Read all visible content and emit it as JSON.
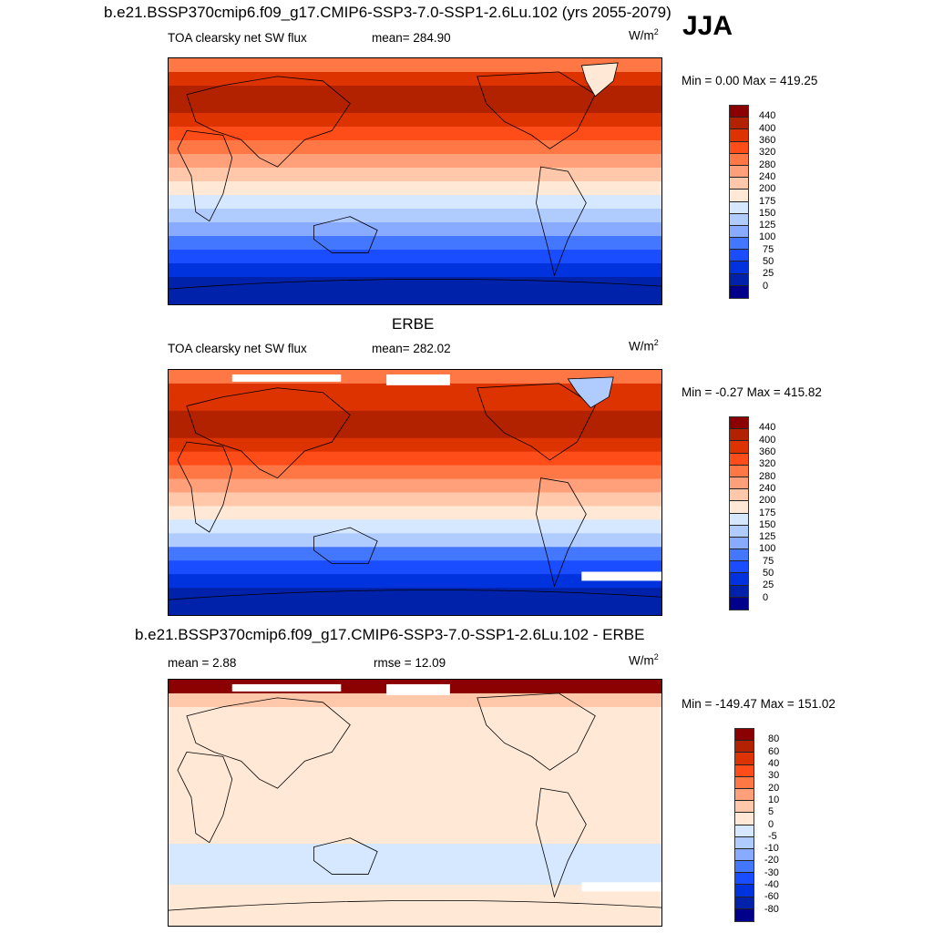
{
  "figure": {
    "title": "b.e21.BSSP370cmip6.f09_g17.CMIP6-SSP3-7.0-SSP1-2.6Lu.102 (yrs 2055-2079)",
    "season": "JJA"
  },
  "colors": [
    "#00008b",
    "#0022aa",
    "#0033dd",
    "#1a4dff",
    "#4477ff",
    "#88aaff",
    "#b0ccff",
    "#d6e8ff",
    "#ffe8d6",
    "#ffc8aa",
    "#ffa07a",
    "#ff7744",
    "#ff4d1a",
    "#dd3300",
    "#b22200",
    "#8b0000"
  ],
  "panels": [
    {
      "title": "",
      "variable": "TOA clearsky net SW flux",
      "stat1": "mean= 284.90",
      "stat2": "",
      "units": "W/m",
      "units_sup": "2",
      "minmax": "Min =   0.00 Max = 419.25",
      "levels": [
        "0",
        "25",
        "50",
        "75",
        "100",
        "125",
        "150",
        "175",
        "200",
        "240",
        "280",
        "320",
        "360",
        "400",
        "440"
      ]
    },
    {
      "title": "ERBE",
      "variable": "TOA clearsky net SW flux",
      "stat1": "mean= 282.02",
      "stat2": "",
      "units": "W/m",
      "units_sup": "2",
      "minmax": "Min =  -0.27 Max = 415.82",
      "levels": [
        "0",
        "25",
        "50",
        "75",
        "100",
        "125",
        "150",
        "175",
        "200",
        "240",
        "280",
        "320",
        "360",
        "400",
        "440"
      ]
    },
    {
      "title": "b.e21.BSSP370cmip6.f09_g17.CMIP6-SSP3-7.0-SSP1-2.6Lu.102 - ERBE",
      "variable": "",
      "stat1": "mean =   2.88",
      "stat2": "rmse =  12.09",
      "units": "W/m",
      "units_sup": "2",
      "minmax": "Min = -149.47 Max = 151.02",
      "levels": [
        "-80",
        "-60",
        "-40",
        "-30",
        "-20",
        "-10",
        "-5",
        "0",
        "5",
        "10",
        "20",
        "30",
        "40",
        "60",
        "80"
      ]
    }
  ],
  "chart_data": [
    {
      "type": "heatmap",
      "title": "TOA clearsky net SW flux (model)",
      "units": "W/m2",
      "mean": 284.9,
      "min": 0.0,
      "max": 419.25,
      "levels": [
        0,
        25,
        50,
        75,
        100,
        125,
        150,
        175,
        200,
        240,
        280,
        320,
        360,
        400,
        440
      ],
      "zonal_bands_color_index": [
        11,
        13,
        14,
        14,
        13,
        12,
        11,
        10,
        9,
        8,
        7,
        6,
        5,
        4,
        3,
        2,
        1,
        1
      ]
    },
    {
      "type": "heatmap",
      "title": "TOA clearsky net SW flux (ERBE)",
      "units": "W/m2",
      "mean": 282.02,
      "min": -0.27,
      "max": 415.82,
      "levels": [
        0,
        25,
        50,
        75,
        100,
        125,
        150,
        175,
        200,
        240,
        280,
        320,
        360,
        400,
        440
      ],
      "zonal_bands_color_index": [
        11,
        13,
        13,
        14,
        14,
        13,
        12,
        11,
        10,
        9,
        8,
        7,
        6,
        4,
        3,
        2,
        1,
        1
      ]
    },
    {
      "type": "heatmap",
      "title": "Model - ERBE",
      "units": "W/m2",
      "mean": 2.88,
      "rmse": 12.09,
      "min": -149.47,
      "max": 151.02,
      "levels": [
        -80,
        -60,
        -40,
        -30,
        -20,
        -10,
        -5,
        0,
        5,
        10,
        20,
        30,
        40,
        60,
        80
      ],
      "zonal_bands_color_index": [
        15,
        9,
        8,
        8,
        8,
        8,
        8,
        8,
        8,
        8,
        8,
        8,
        7,
        7,
        7,
        8,
        8,
        8
      ]
    }
  ]
}
